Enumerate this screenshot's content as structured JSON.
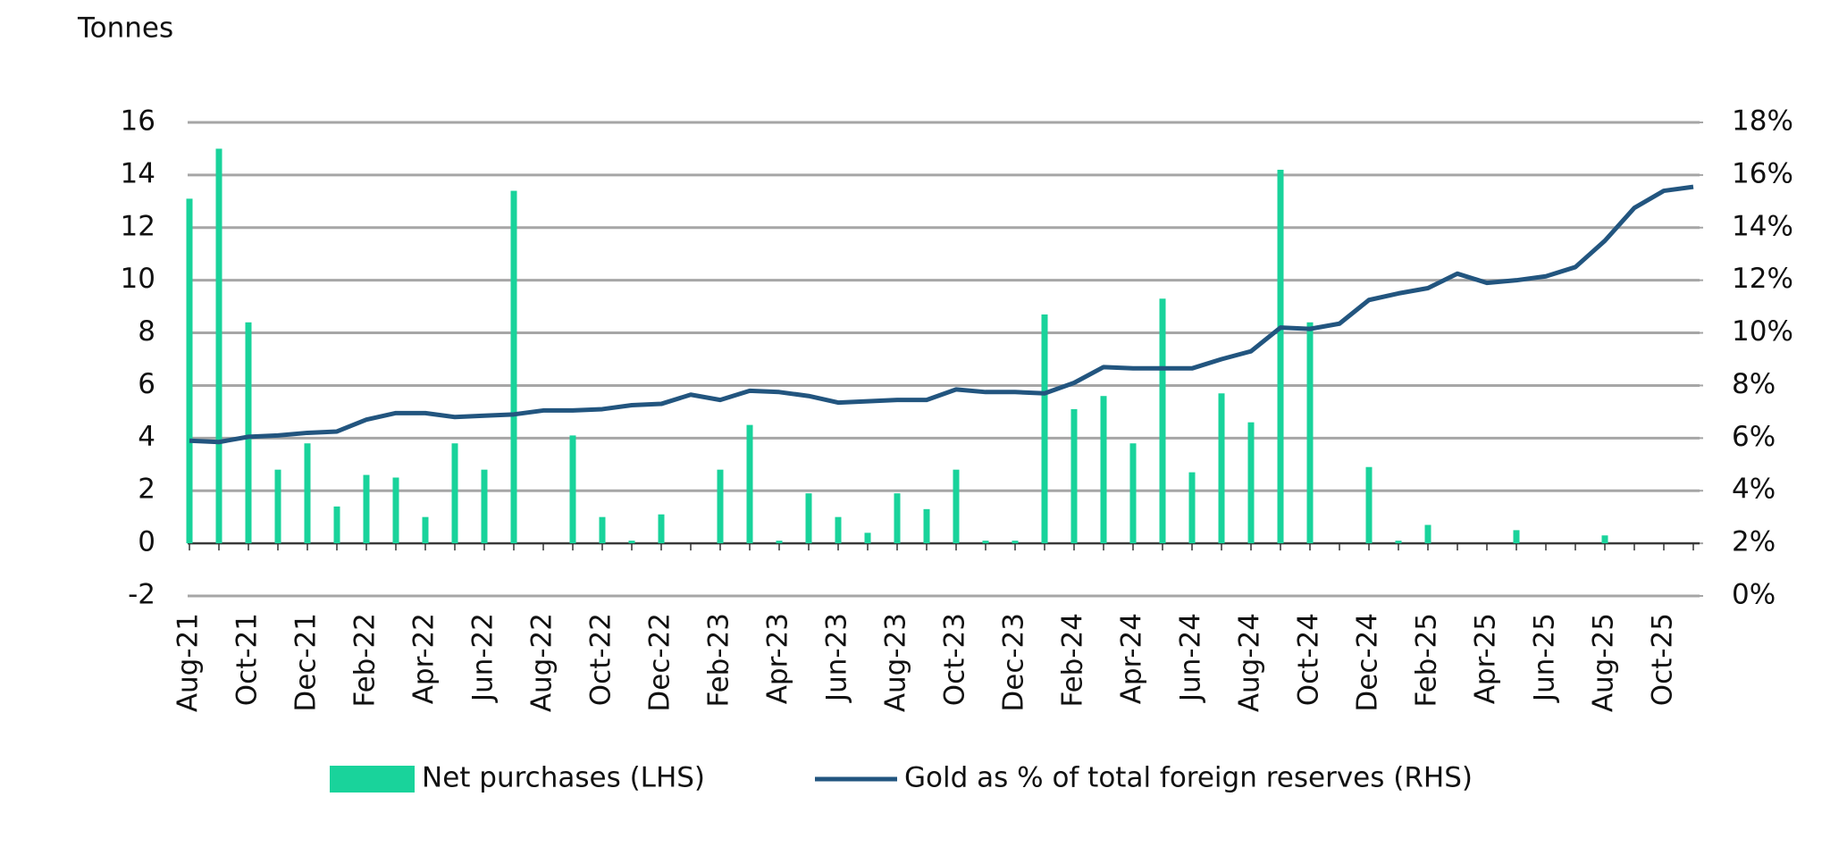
{
  "chart_data": {
    "type": "bar-line",
    "y_axis_label": "Tonnes",
    "categories": [
      "Aug-21",
      null,
      "Oct-21",
      null,
      "Dec-21",
      null,
      "Feb-22",
      null,
      "Apr-22",
      null,
      "Jun-22",
      null,
      "Aug-22",
      null,
      "Oct-22",
      null,
      "Dec-22",
      null,
      "Feb-23",
      null,
      "Apr-23",
      null,
      "Jun-23",
      null,
      "Aug-23",
      null,
      "Oct-23",
      null,
      "Dec-23",
      null,
      "Feb-24",
      null,
      "Apr-24",
      null,
      "Jun-24",
      null,
      "Aug-24",
      null,
      "Oct-24",
      null,
      "Dec-24",
      null,
      "Feb-25",
      null,
      "Apr-25",
      null,
      "Jun-25",
      null,
      "Aug-25",
      null,
      "Oct-25",
      null
    ],
    "series": [
      {
        "name": "Net purchases (LHS)",
        "type": "bar",
        "color": "#19d39b",
        "values": [
          13.1,
          15.0,
          8.4,
          2.8,
          3.8,
          1.4,
          2.6,
          2.5,
          1.0,
          3.8,
          2.8,
          13.4,
          0,
          4.1,
          1.0,
          0.1,
          1.1,
          0,
          2.8,
          4.5,
          0.1,
          1.9,
          1.0,
          0.4,
          1.9,
          1.3,
          2.8,
          0.1,
          0.1,
          8.7,
          5.1,
          5.6,
          3.8,
          9.3,
          2.7,
          5.7,
          4.6,
          14.2,
          8.4,
          0,
          2.9,
          0.1,
          0.7,
          0,
          0,
          0.5,
          0,
          0,
          0.3,
          0,
          0,
          0
        ]
      },
      {
        "name": "Gold as % of total foreign reserves (RHS)",
        "type": "line",
        "axis": "y2",
        "color": "#22557f",
        "values": [
          5.9,
          5.85,
          6.05,
          6.1,
          6.2,
          6.25,
          6.7,
          6.95,
          6.95,
          6.8,
          6.85,
          6.9,
          7.05,
          7.05,
          7.1,
          7.25,
          7.3,
          7.65,
          7.45,
          7.8,
          7.75,
          7.6,
          7.35,
          7.4,
          7.45,
          7.45,
          7.85,
          7.75,
          7.75,
          7.7,
          8.1,
          8.7,
          8.65,
          8.65,
          8.65,
          9.0,
          9.3,
          10.2,
          10.15,
          10.35,
          11.25,
          11.5,
          11.7,
          12.25,
          11.9,
          12.0,
          12.15,
          12.5,
          13.5,
          14.75,
          15.4,
          15.55
        ]
      }
    ],
    "ylim": [
      -2,
      16
    ],
    "yticks": [
      -2,
      0,
      2,
      4,
      6,
      8,
      10,
      12,
      14,
      16
    ],
    "y2lim": [
      0,
      18
    ],
    "y2ticks": [
      {
        "value": 0,
        "label": "0%"
      },
      {
        "value": 2,
        "label": "2%"
      },
      {
        "value": 4,
        "label": "4%"
      },
      {
        "value": 6,
        "label": "6%"
      },
      {
        "value": 8,
        "label": "8%"
      },
      {
        "value": 10,
        "label": "10%"
      },
      {
        "value": 12,
        "label": "12%"
      },
      {
        "value": 14,
        "label": "14%"
      },
      {
        "value": 16,
        "label": "16%"
      },
      {
        "value": 18,
        "label": "18%"
      }
    ],
    "grid": true
  }
}
